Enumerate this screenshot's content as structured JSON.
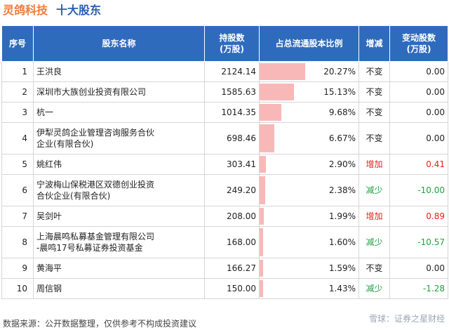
{
  "title": {
    "company": "灵鸽科技",
    "subject": "十大股东"
  },
  "table": {
    "headers": {
      "seq": "序号",
      "name": "股东名称",
      "shares_l1": "持股数",
      "shares_l2": "(万股)",
      "ratio": "占总流通股本比例",
      "change": "增减",
      "chg_shares_l1": "变动股数",
      "chg_shares_l2": "(万股)"
    },
    "rows": [
      {
        "seq": "1",
        "name": "王洪良",
        "shares": "2124.14",
        "ratio": "20.27%",
        "ratio_value": 20.27,
        "change": "不变",
        "change_type": "same",
        "chg_shares": "0.00"
      },
      {
        "seq": "2",
        "name": "深圳市大族创业投资有限公司",
        "shares": "1585.63",
        "ratio": "15.13%",
        "ratio_value": 15.13,
        "change": "不变",
        "change_type": "same",
        "chg_shares": "0.00"
      },
      {
        "seq": "3",
        "name": "杭一",
        "shares": "1014.35",
        "ratio": "9.68%",
        "ratio_value": 9.68,
        "change": "不变",
        "change_type": "same",
        "chg_shares": "0.00"
      },
      {
        "seq": "4",
        "name_l1": "伊犁灵鸽企业管理咨询服务合伙",
        "name_l2": "企业(有限合伙)",
        "shares": "698.46",
        "ratio": "6.67%",
        "ratio_value": 6.67,
        "change": "不变",
        "change_type": "same",
        "chg_shares": "0.00"
      },
      {
        "seq": "5",
        "name": "姚红伟",
        "shares": "303.41",
        "ratio": "2.90%",
        "ratio_value": 2.9,
        "change": "增加",
        "change_type": "inc",
        "chg_shares": "0.41"
      },
      {
        "seq": "6",
        "name_l1": "宁波梅山保税港区双德创业投资",
        "name_l2": "合伙企业(有限合伙)",
        "shares": "249.20",
        "ratio": "2.38%",
        "ratio_value": 2.38,
        "change": "减少",
        "change_type": "dec",
        "chg_shares": "-10.00"
      },
      {
        "seq": "7",
        "name": "吴剑叶",
        "shares": "208.00",
        "ratio": "1.99%",
        "ratio_value": 1.99,
        "change": "增加",
        "change_type": "inc",
        "chg_shares": "0.89"
      },
      {
        "seq": "8",
        "name_l1": "上海晨鸣私募基金管理有限公司",
        "name_l2": "-晨鸣17号私募证券投资基金",
        "shares": "168.00",
        "ratio": "1.60%",
        "ratio_value": 1.6,
        "change": "减少",
        "change_type": "dec",
        "chg_shares": "-10.57"
      },
      {
        "seq": "9",
        "name": "黄海平",
        "shares": "166.27",
        "ratio": "1.59%",
        "ratio_value": 1.59,
        "change": "不变",
        "change_type": "same",
        "chg_shares": "0.00"
      },
      {
        "seq": "10",
        "name": "周信钢",
        "shares": "150.00",
        "ratio": "1.43%",
        "ratio_value": 1.43,
        "change": "减少",
        "change_type": "dec",
        "chg_shares": "-1.28"
      }
    ]
  },
  "colors": {
    "header_bg": "#2f6bbd",
    "bar": "#f9b8b8",
    "increase": "#e0221a",
    "decrease": "#20a040",
    "company": "#ee7b3d",
    "subject": "#2a5fae"
  },
  "footer": {
    "source": "数据来源：公开数据整理，仅供参考不构成投资建议"
  },
  "brand": {
    "text": "雪球：证券之星财经"
  }
}
